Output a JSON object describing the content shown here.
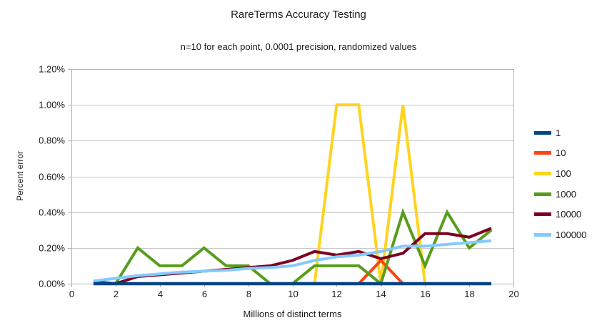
{
  "chart_data": {
    "type": "line",
    "title": "RareTerms Accuracy Testing",
    "subtitle": "n=10 for each point, 0.0001 precision, randomized values",
    "xlabel": "Millions of distinct terms",
    "ylabel": "Percent error",
    "xlim": [
      0,
      20
    ],
    "ylim": [
      0,
      1.2
    ],
    "x_ticks": [
      0,
      2,
      4,
      6,
      8,
      10,
      12,
      14,
      16,
      18,
      20
    ],
    "y_ticks": [
      0,
      0.2,
      0.4,
      0.6,
      0.8,
      1.0,
      1.2
    ],
    "y_tick_suffix": "%",
    "grid": "horizontal",
    "legend_position": "right",
    "x": [
      1,
      2,
      3,
      4,
      5,
      6,
      7,
      8,
      9,
      10,
      11,
      12,
      13,
      14,
      15,
      16,
      17,
      18,
      19
    ],
    "series": [
      {
        "name": "1",
        "color": "#004586",
        "values": [
          0,
          0,
          0,
          0,
          0,
          0,
          0,
          0,
          0,
          0,
          0,
          0,
          0,
          0,
          0,
          0,
          0,
          0,
          0
        ]
      },
      {
        "name": "10",
        "color": "#FF420E",
        "values": [
          0,
          0,
          0,
          0,
          0,
          0,
          0,
          0,
          0,
          0,
          0,
          0,
          0,
          0.13,
          0,
          0,
          0,
          0,
          0
        ]
      },
      {
        "name": "100",
        "color": "#FFD320",
        "values": [
          0,
          0,
          0,
          0,
          0,
          0,
          0,
          0,
          0,
          0,
          0,
          1.0,
          1.0,
          0,
          1.0,
          0,
          0,
          0,
          0
        ]
      },
      {
        "name": "1000",
        "color": "#579D1C",
        "values": [
          0.01,
          0,
          0.2,
          0.1,
          0.1,
          0.2,
          0.1,
          0.1,
          0,
          0,
          0.1,
          0.1,
          0.1,
          0,
          0.4,
          0.1,
          0.4,
          0.2,
          0.3
        ]
      },
      {
        "name": "10000",
        "color": "#7E0021",
        "values": [
          0.01,
          0,
          0.04,
          0.05,
          0.06,
          0.07,
          0.08,
          0.09,
          0.1,
          0.13,
          0.18,
          0.16,
          0.18,
          0.14,
          0.17,
          0.28,
          0.28,
          0.26,
          0.31
        ]
      },
      {
        "name": "100000",
        "color": "#83CAFF",
        "values": [
          0.015,
          0.03,
          0.045,
          0.055,
          0.065,
          0.07,
          0.075,
          0.085,
          0.09,
          0.1,
          0.13,
          0.15,
          0.16,
          0.18,
          0.21,
          0.21,
          0.22,
          0.23,
          0.24
        ]
      }
    ]
  },
  "colors": {
    "grid": "#c8c8c8",
    "axis": "#b3b3b3",
    "text": "#1a1a1a",
    "background": "#ffffff"
  }
}
